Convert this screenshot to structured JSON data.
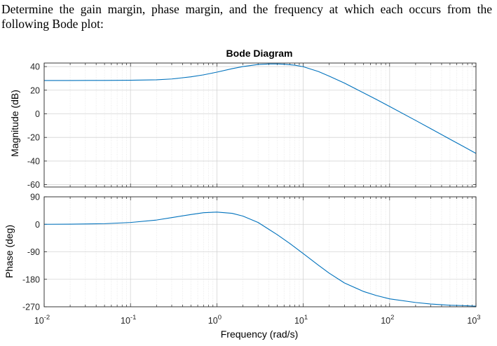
{
  "question": {
    "line1": "Determine the gain margin, phase margin, and the frequency at which each occurs from the",
    "line2": "following Bode plot:"
  },
  "chart_data": {
    "type": "line",
    "title": "Bode Diagram",
    "xlabel": "Frequency  (rad/s)",
    "x_scale": "log",
    "xlim": [
      0.01,
      1000
    ],
    "x_ticks": [
      {
        "base": "10",
        "exp": "-2"
      },
      {
        "base": "10",
        "exp": "-1"
      },
      {
        "base": "10",
        "exp": "0"
      },
      {
        "base": "10",
        "exp": "1"
      },
      {
        "base": "10",
        "exp": "2"
      },
      {
        "base": "10",
        "exp": "3"
      }
    ],
    "grid": true,
    "line_color": "#0072BD",
    "magnitude": {
      "ylabel": "Magnitude (dB)",
      "ylim": [
        -62,
        43
      ],
      "yticks": [
        "40",
        "20",
        "0",
        "-20",
        "-40",
        "-60"
      ],
      "series": [
        {
          "x": [
            0.01,
            0.02,
            0.05,
            0.1,
            0.2,
            0.3,
            0.5,
            0.7,
            1,
            1.5,
            2,
            3,
            4,
            5,
            6,
            8,
            10,
            15,
            20,
            30,
            50,
            70,
            100,
            200,
            300,
            500,
            700,
            1000
          ],
          "y": [
            28.2,
            28.2,
            28.3,
            28.4,
            28.8,
            29.5,
            31.3,
            33,
            35.3,
            38.2,
            40,
            41.8,
            42.2,
            42.2,
            42,
            41.2,
            39.9,
            35.8,
            31.9,
            26,
            17.7,
            12.2,
            6.2,
            -5.6,
            -12.6,
            -21.5,
            -27.3,
            -33.5
          ]
        }
      ]
    },
    "phase": {
      "ylabel": "Phase (deg)",
      "ylim": [
        -270,
        90
      ],
      "yticks": [
        "90",
        "0",
        "-90",
        "-180",
        "-270"
      ],
      "series": [
        {
          "x": [
            0.01,
            0.02,
            0.05,
            0.1,
            0.2,
            0.3,
            0.5,
            0.7,
            1,
            1.5,
            2,
            3,
            5,
            7,
            10,
            15,
            20,
            30,
            50,
            70,
            100,
            200,
            300,
            500,
            700,
            1000
          ],
          "y": [
            0,
            0.5,
            2,
            6,
            14,
            22,
            32,
            38,
            40,
            36,
            27,
            6,
            -34,
            -63,
            -96,
            -134,
            -160,
            -192,
            -220,
            -233,
            -244,
            -256,
            -261,
            -265,
            -266,
            -268
          ]
        }
      ]
    }
  }
}
